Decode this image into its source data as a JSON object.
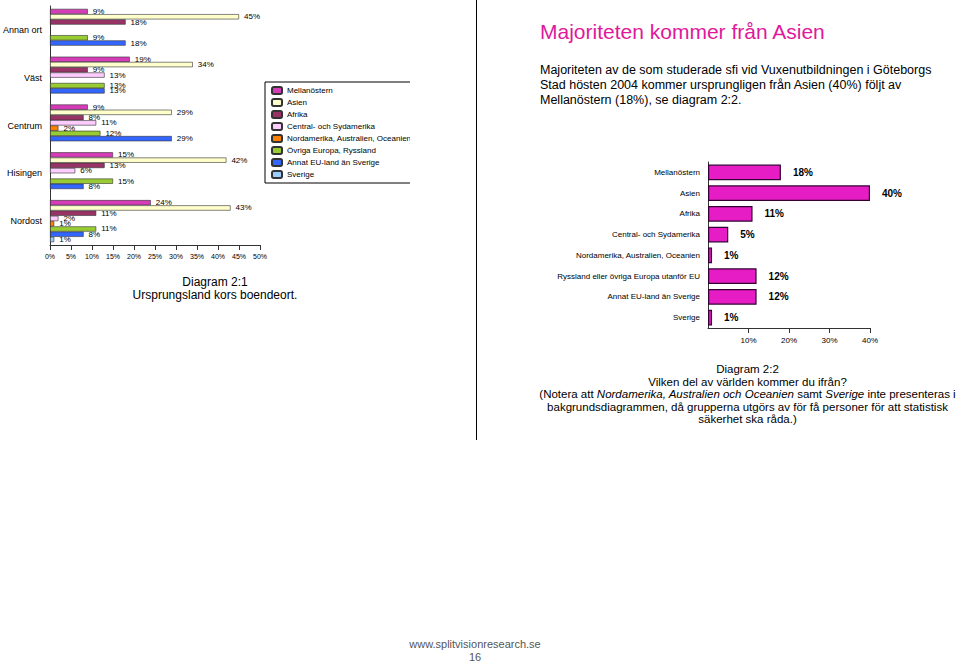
{
  "heading": "Majoriteten kommer från Asien",
  "paragraph": "Majoriteten av de som studerade sfi vid Vuxenutbildningen i Göteborgs Stad hösten 2004 kommer ursprungligen från Asien (40%) följt av Mellanöstern (18%), se diagram 2:2.",
  "chart_data": [
    {
      "type": "bar",
      "orientation": "horizontal",
      "data_labels": true,
      "legend": "right",
      "categories": [
        "Annan ort",
        "Väst",
        "Centrum",
        "Hisingen",
        "Nordost"
      ],
      "xlim": [
        0,
        50
      ],
      "xticks": [
        {
          "value": 0,
          "label": "0%"
        },
        {
          "value": 5,
          "label": "5%"
        },
        {
          "value": 10,
          "label": "10%"
        },
        {
          "value": 15,
          "label": "15%"
        },
        {
          "value": 20,
          "label": "20%"
        },
        {
          "value": 25,
          "label": "25%"
        },
        {
          "value": 30,
          "label": "30%"
        },
        {
          "value": 35,
          "label": "35%"
        },
        {
          "value": 40,
          "label": "40%"
        },
        {
          "value": 45,
          "label": "45%"
        },
        {
          "value": 50,
          "label": "50%"
        }
      ],
      "series": [
        {
          "name": "Mellanöstern",
          "color": "#d63cb8",
          "values": [
            9,
            19,
            9,
            15,
            24
          ],
          "value_labels": [
            "9%",
            "19%",
            "9%",
            "15%",
            "24%"
          ]
        },
        {
          "name": "Asien",
          "color": "#ffffcc",
          "values": [
            45,
            34,
            29,
            42,
            43
          ],
          "value_labels": [
            "45%",
            "34%",
            "29%",
            "42%",
            "43%"
          ]
        },
        {
          "name": "Afrika",
          "color": "#993366",
          "values": [
            18,
            9,
            8,
            13,
            11
          ],
          "value_labels": [
            "18%",
            "9%",
            "8%",
            "13%",
            "11%"
          ]
        },
        {
          "name": "Central- och Sydamerika",
          "color": "#ffccff",
          "values": [
            null,
            13,
            11,
            6,
            2
          ],
          "value_labels": [
            null,
            "13%",
            "11%",
            "6%",
            "2%"
          ]
        },
        {
          "name": "Nordamerika, Australien, Oceanien",
          "color": "#ff8000",
          "values": [
            null,
            null,
            2,
            null,
            1
          ],
          "value_labels": [
            null,
            null,
            "2%",
            null,
            "1%"
          ]
        },
        {
          "name": "Övriga Europa, Ryssland",
          "color": "#99cc33",
          "values": [
            9,
            13,
            12,
            15,
            11
          ],
          "value_labels": [
            "9%",
            "13%",
            "12%",
            "15%",
            "11%"
          ]
        },
        {
          "name": "Annat EU-land än Sverige",
          "color": "#3366ff",
          "values": [
            18,
            13,
            29,
            8,
            8
          ],
          "value_labels": [
            "18%",
            "13%",
            "29%",
            "8%",
            "8%"
          ]
        },
        {
          "name": "Sverige",
          "color": "#99ccff",
          "values": [
            null,
            null,
            null,
            null,
            1
          ],
          "value_labels": [
            null,
            null,
            null,
            null,
            "1%"
          ]
        }
      ]
    },
    {
      "type": "bar",
      "orientation": "horizontal",
      "data_labels": true,
      "color": "#e61cc4",
      "categories": [
        "Mellanöstern",
        "Asien",
        "Afrika",
        "Central- och Sydamerika",
        "Nordamerika, Australien, Oceanien",
        "Ryssland eller övriga Europa utanför EU",
        "Annat EU-land än Sverige",
        "Sverige"
      ],
      "values": [
        18,
        40,
        11,
        5,
        1,
        12,
        12,
        1
      ],
      "value_labels": [
        "18%",
        "40%",
        "11%",
        "5%",
        "1%",
        "12%",
        "12%",
        "1%"
      ],
      "xlim": [
        0,
        40
      ],
      "xticks": [
        {
          "value": 10,
          "label": "10%"
        },
        {
          "value": 20,
          "label": "20%"
        },
        {
          "value": 30,
          "label": "30%"
        },
        {
          "value": 40,
          "label": "40%"
        }
      ]
    }
  ],
  "captions": {
    "diagram_1": [
      "Diagram 2:1",
      "Ursprungsland kors boendeort."
    ],
    "diagram_2": {
      "title": "Diagram 2:2",
      "question": "Vilken del av världen kommer du ifrån?",
      "note": [
        {
          "text": "(Notera att ",
          "italic": false
        },
        {
          "text": "Nordamerika, Australien och Oceanien",
          "italic": true
        },
        {
          "text": " samt ",
          "italic": false
        },
        {
          "text": "Sverige",
          "italic": true
        },
        {
          "text": " inte presenteras i bakgrundsdiagrammen, då grupperna utgörs av för få personer för att statistisk säkerhet ska råda.)",
          "italic": false
        }
      ]
    }
  },
  "footer": {
    "url": "www.splitvisionresearch.se",
    "page": "16"
  }
}
